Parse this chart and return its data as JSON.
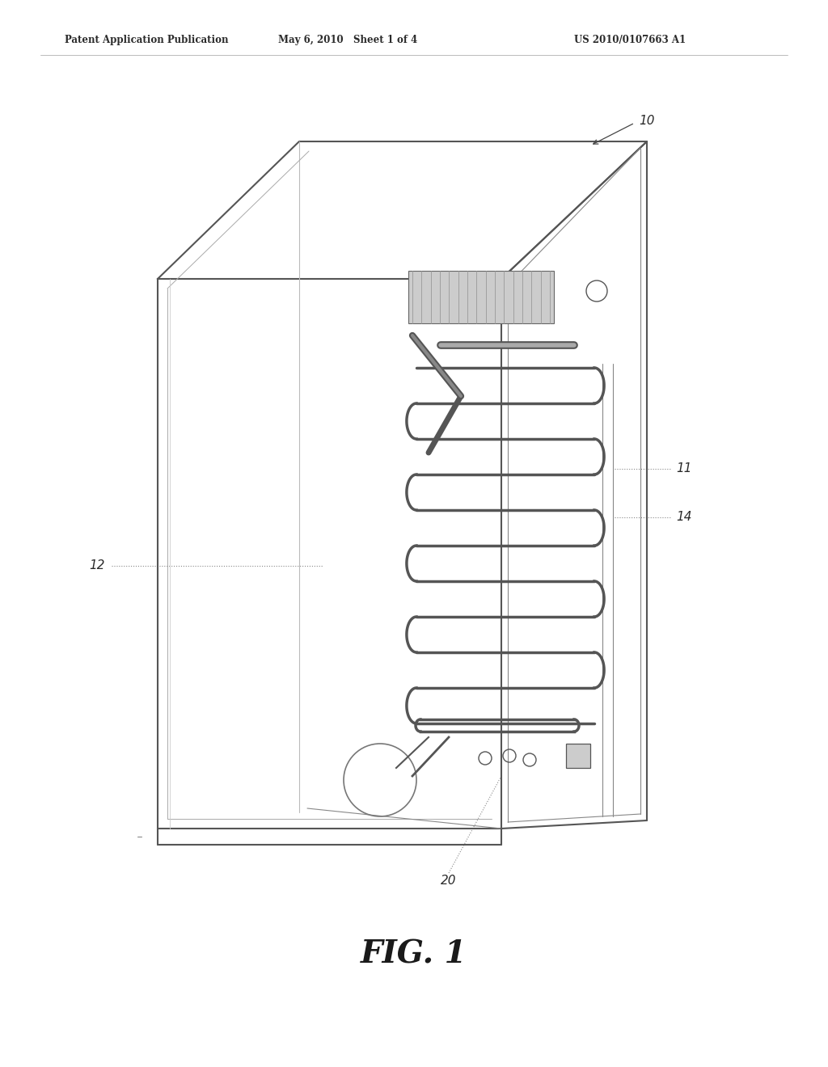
{
  "bg_color": "#ffffff",
  "line_color": "#555555",
  "light_line": "#aaaaaa",
  "dark_line": "#333333",
  "header_left": "Patent Application Publication",
  "header_mid": "May 6, 2010   Sheet 1 of 4",
  "header_right": "US 2010/0107663 A1",
  "fig_label": "FIG. 1",
  "figsize": [
    10.24,
    13.2
  ],
  "dpi": 100
}
